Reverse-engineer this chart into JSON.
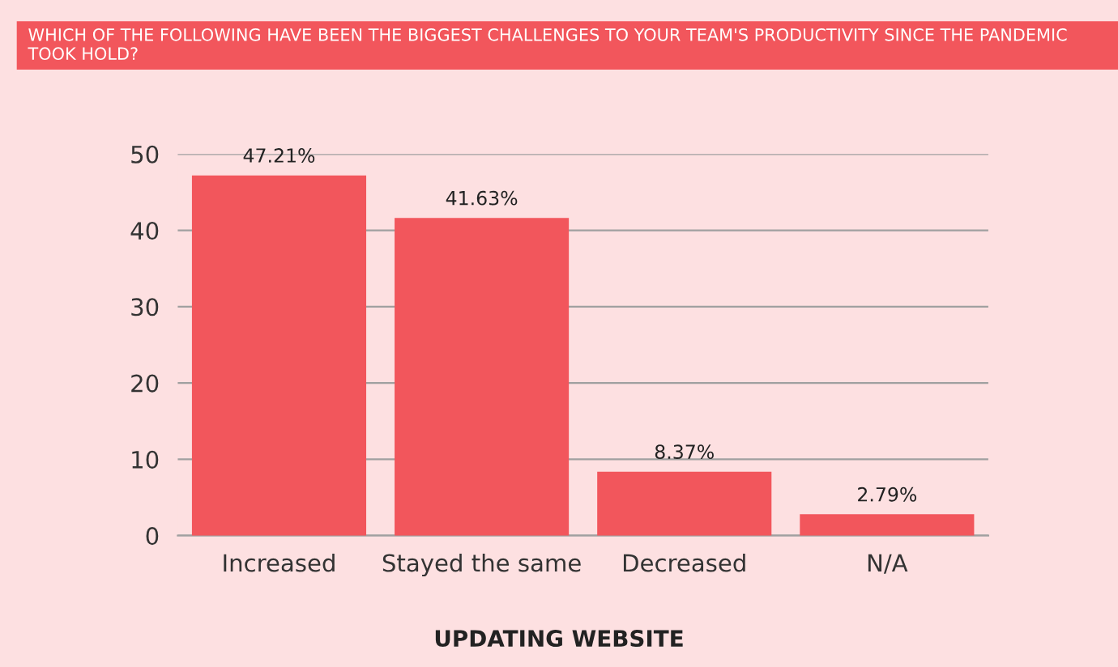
{
  "chart_data": {
    "type": "bar",
    "title": "WHICH OF THE FOLLOWING HAVE BEEN THE BIGGEST CHALLENGES TO YOUR TEAM'S PRODUCTIVITY SINCE THE PANDEMIC TOOK HOLD?",
    "categories": [
      "Increased",
      "Stayed the same",
      "Decreased",
      "N/A"
    ],
    "values": [
      47.21,
      41.63,
      8.37,
      2.79
    ],
    "value_labels": [
      "47.21%",
      "41.63%",
      "8.37%",
      "2.79%"
    ],
    "color": "#f2565c",
    "ylim": [
      0,
      50
    ],
    "yticks": [
      0,
      10,
      20,
      30,
      40,
      50
    ],
    "grid": "y",
    "annotations": [
      "UPDATING WEBSITE"
    ]
  }
}
